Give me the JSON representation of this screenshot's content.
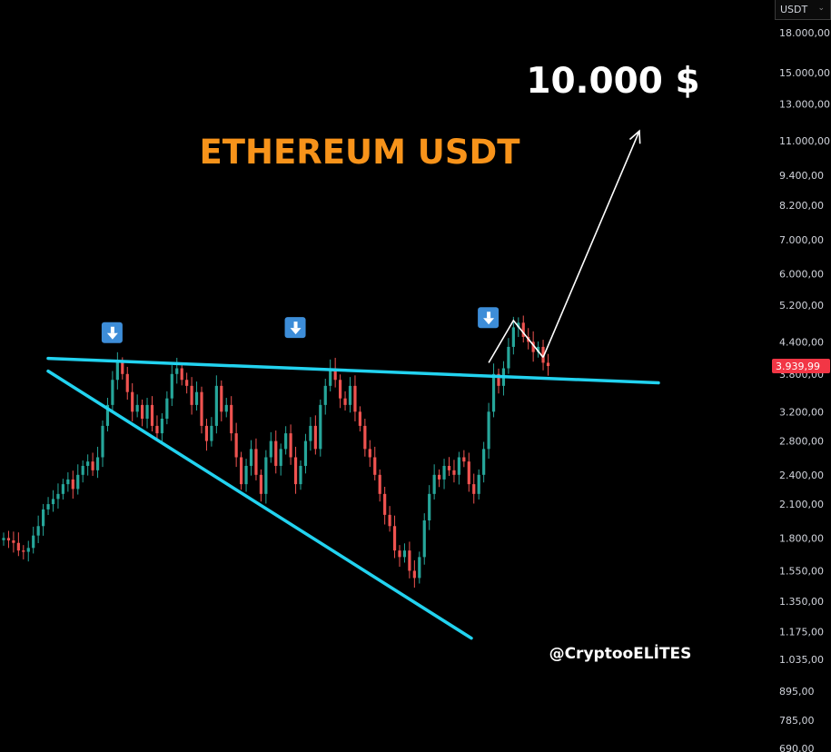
{
  "currency_selector": {
    "value": "USDT"
  },
  "annotations": {
    "title": "ETHEREUM USDT",
    "target": "10.000 $",
    "handle": "@CryptooELİTES"
  },
  "colors": {
    "up": "#26a69a",
    "down": "#ef5350",
    "trendline": "#22d3f0",
    "title": "#f7931a",
    "price_tag": "#f23645",
    "marker": "#3d8dd8"
  },
  "icons": {
    "marker": "arrow-down-icon"
  },
  "chart_data": {
    "type": "candlestick",
    "title": "ETHEREUM USDT",
    "y_scale": "log",
    "ylim": [
      690,
      18000
    ],
    "y_ticks": [
      {
        "value": 18000,
        "label": "18.000,00"
      },
      {
        "value": 15000,
        "label": "15.000,00"
      },
      {
        "value": 13000,
        "label": "13.000,00"
      },
      {
        "value": 11000,
        "label": "11.000,00"
      },
      {
        "value": 9400,
        "label": "9.400,00"
      },
      {
        "value": 8200,
        "label": "8.200,00"
      },
      {
        "value": 7000,
        "label": "7.000,00"
      },
      {
        "value": 6000,
        "label": "6.000,00"
      },
      {
        "value": 5200,
        "label": "5.200,00"
      },
      {
        "value": 4400,
        "label": "4.400,00"
      },
      {
        "value": 3800,
        "label": "3.800,00"
      },
      {
        "value": 3200,
        "label": "3.200,00"
      },
      {
        "value": 2800,
        "label": "2.800,00"
      },
      {
        "value": 2400,
        "label": "2.400,00"
      },
      {
        "value": 2100,
        "label": "2.100,00"
      },
      {
        "value": 1800,
        "label": "1.800,00"
      },
      {
        "value": 1550,
        "label": "1.550,00"
      },
      {
        "value": 1350,
        "label": "1.350,00"
      },
      {
        "value": 1175,
        "label": "1.175,00"
      },
      {
        "value": 1035,
        "label": "1.035,00"
      },
      {
        "value": 895,
        "label": "895,00"
      },
      {
        "value": 785,
        "label": "785,00"
      },
      {
        "value": 690,
        "label": "690,00"
      }
    ],
    "current_price": {
      "value": 3939.99,
      "label": "3.939,99"
    },
    "target_price": 10000,
    "closes": [
      1800,
      1780,
      1760,
      1700,
      1690,
      1720,
      1820,
      1900,
      2050,
      2100,
      2150,
      2200,
      2300,
      2350,
      2250,
      2400,
      2500,
      2550,
      2450,
      2600,
      3000,
      3300,
      3700,
      4000,
      3800,
      3500,
      3200,
      3300,
      3100,
      3300,
      3000,
      2900,
      3100,
      3400,
      3800,
      3900,
      3700,
      3600,
      3300,
      3500,
      3000,
      2800,
      3000,
      3600,
      3200,
      3300,
      2900,
      2600,
      2300,
      2500,
      2700,
      2400,
      2200,
      2600,
      2800,
      2500,
      2700,
      2900,
      2600,
      2300,
      2500,
      2800,
      3000,
      2700,
      3300,
      3600,
      3900,
      3700,
      3400,
      3300,
      3600,
      3200,
      3000,
      2700,
      2600,
      2400,
      2200,
      2000,
      1900,
      1700,
      1650,
      1700,
      1550,
      1500,
      1650,
      1950,
      2200,
      2400,
      2350,
      2500,
      2450,
      2400,
      2600,
      2550,
      2300,
      2200,
      2400,
      2700,
      3200,
      3800,
      3600,
      3900,
      4300,
      4700,
      4800,
      4500,
      4400,
      4200,
      4300,
      4000,
      3939.99
    ],
    "resistance_line": {
      "start": 4080,
      "end": 3650
    },
    "support_line": {
      "start": 3850,
      "end": 1140
    },
    "markers_at": [
      {
        "index": 22,
        "price": 4250
      },
      {
        "index": 59,
        "price": 4350
      },
      {
        "index": 98,
        "price": 4550
      }
    ],
    "peak_zigzag": [
      4000,
      4850,
      4100
    ],
    "target_arrow": {
      "from": 4100,
      "to": 11500
    }
  }
}
